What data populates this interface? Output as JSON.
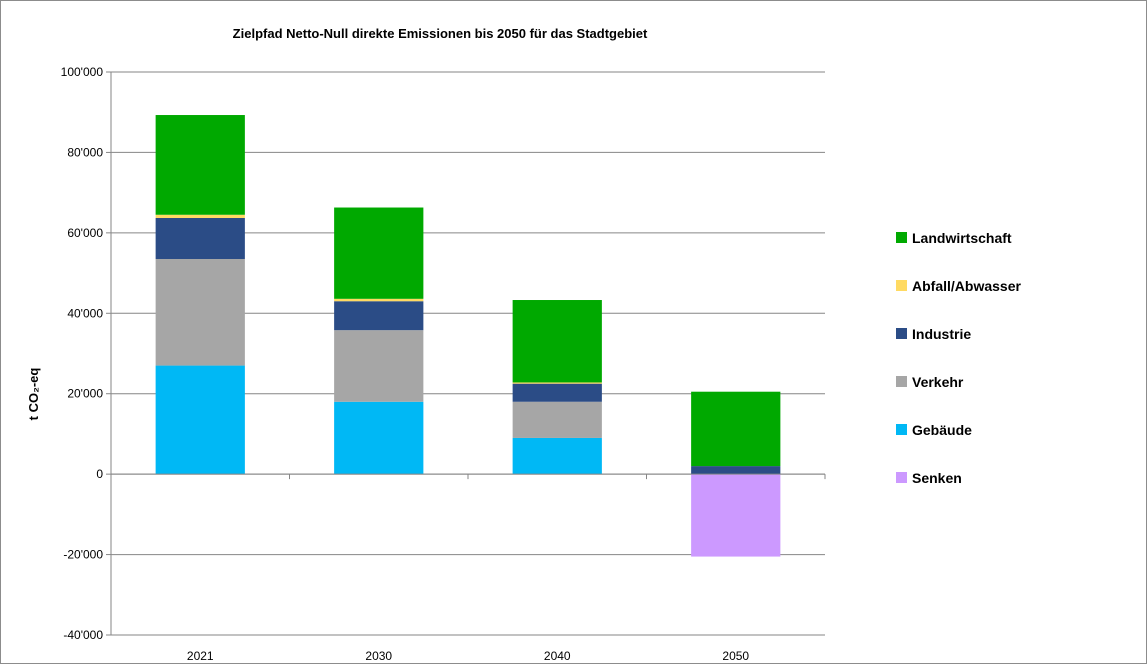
{
  "chart_data": {
    "type": "bar",
    "stacked": true,
    "title": "Zielpfad Netto-Null direkte Emissionen bis 2050 für das Stadtgebiet",
    "ylabel": "t CO₂-eq",
    "xlabel": "",
    "categories": [
      "2021",
      "2030",
      "2040",
      "2050"
    ],
    "ylim": [
      -40000,
      100000
    ],
    "yticks": [
      -40000,
      -20000,
      0,
      20000,
      40000,
      60000,
      80000,
      100000
    ],
    "ytick_labels": [
      "-40'000",
      "-20'000",
      "0",
      "20'000",
      "40'000",
      "60'000",
      "80'000",
      "100'000"
    ],
    "grid": true,
    "legend_position": "right",
    "series": [
      {
        "name": "Gebäude",
        "color": "#00B8F5",
        "values": [
          27000,
          18000,
          9000,
          0
        ]
      },
      {
        "name": "Verkehr",
        "color": "#A6A6A6",
        "values": [
          26500,
          17800,
          9000,
          0
        ]
      },
      {
        "name": "Industrie",
        "color": "#2B4C86",
        "values": [
          10200,
          7200,
          4500,
          2000
        ]
      },
      {
        "name": "Abfall/Abwasser",
        "color": "#FFDA62",
        "values": [
          800,
          600,
          300,
          0
        ]
      },
      {
        "name": "Landwirtschaft",
        "color": "#00A900",
        "values": [
          24800,
          22700,
          20500,
          18500
        ]
      },
      {
        "name": "Senken",
        "color": "#CC99FF",
        "values": [
          0,
          0,
          0,
          -20500
        ]
      }
    ],
    "legend_order": [
      "Landwirtschaft",
      "Abfall/Abwasser",
      "Industrie",
      "Verkehr",
      "Gebäude",
      "Senken"
    ]
  }
}
